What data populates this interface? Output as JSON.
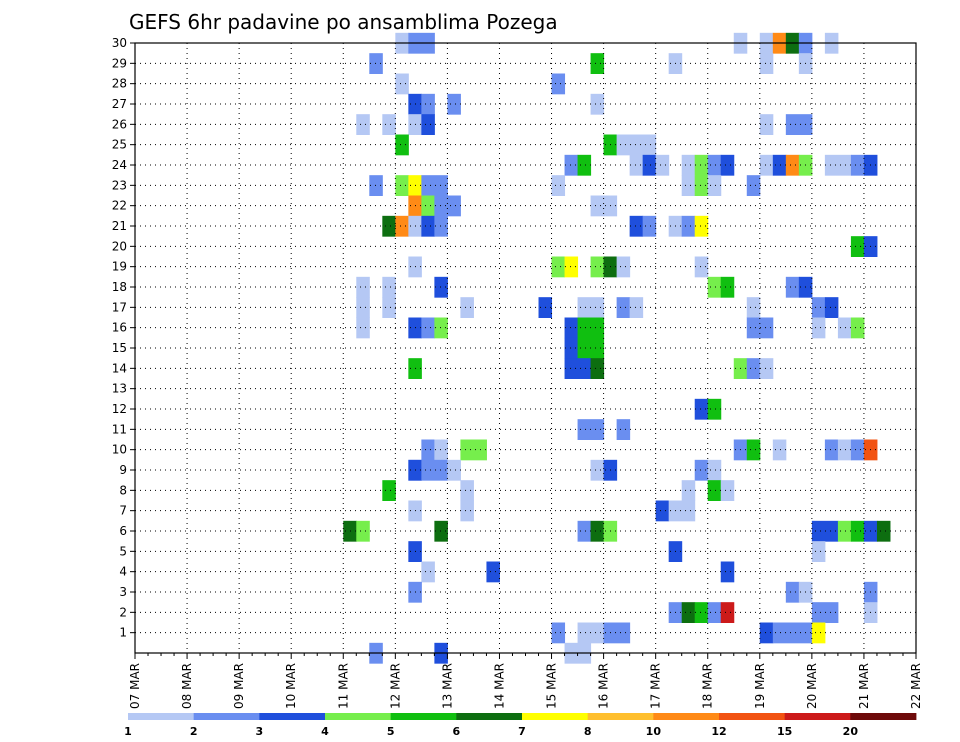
{
  "chart_data": {
    "type": "heatmap",
    "title": "GEFS 6hr padavine po ansamblima Pozega",
    "x_tick_labels": [
      "07 MAR",
      "08 MAR",
      "09 MAR",
      "10 MAR",
      "11 MAR",
      "12 MAR",
      "13 MAR",
      "14 MAR",
      "15 MAR",
      "16 MAR",
      "17 MAR",
      "18 MAR",
      "19 MAR",
      "20 MAR",
      "21 MAR",
      "22 MAR"
    ],
    "x_interval": "6hr",
    "y_tick_labels": [
      "1",
      "2",
      "3",
      "4",
      "5",
      "6",
      "7",
      "8",
      "9",
      "10",
      "11",
      "12",
      "13",
      "14",
      "15",
      "16",
      "17",
      "18",
      "19",
      "20",
      "21",
      "22",
      "23",
      "24",
      "25",
      "26",
      "27",
      "28",
      "29",
      "30"
    ],
    "y_range": [
      0,
      30
    ],
    "grid": true,
    "colorbar": {
      "placement": "bottom",
      "labels": [
        "1",
        "2",
        "3",
        "4",
        "5",
        "6",
        "7",
        "8",
        "10",
        "12",
        "15",
        "20"
      ],
      "colors": [
        "#b5c8f4",
        "#6a8ef0",
        "#1f4fdc",
        "#76ee4c",
        "#10bf10",
        "#0d6e10",
        "#ffff00",
        "#ffbf2e",
        "#ff8a16",
        "#f25312",
        "#cc1a1a",
        "#6e0a0a"
      ]
    },
    "cells": [
      {
        "m": 30,
        "s": [
          [
            20,
            21,
            0
          ],
          [
            21,
            23,
            1
          ],
          [
            46,
            47,
            0
          ],
          [
            48,
            49,
            0
          ],
          [
            49,
            50,
            8
          ],
          [
            50,
            51,
            5
          ],
          [
            51,
            52,
            1
          ],
          [
            53,
            54,
            0
          ]
        ]
      },
      {
        "m": 29,
        "s": [
          [
            18,
            19,
            1
          ],
          [
            35,
            36,
            4
          ],
          [
            41,
            42,
            0
          ],
          [
            48,
            49,
            0
          ],
          [
            51,
            52,
            0
          ]
        ]
      },
      {
        "m": 28,
        "s": [
          [
            20,
            21,
            0
          ],
          [
            32,
            33,
            1
          ]
        ]
      },
      {
        "m": 27,
        "s": [
          [
            21,
            22,
            2
          ],
          [
            22,
            23,
            1
          ],
          [
            24,
            25,
            1
          ],
          [
            35,
            36,
            0
          ]
        ]
      },
      {
        "m": 26,
        "s": [
          [
            17,
            18,
            0
          ],
          [
            19,
            20,
            0
          ],
          [
            21,
            22,
            0
          ],
          [
            22,
            23,
            2
          ],
          [
            48,
            49,
            0
          ],
          [
            50,
            52,
            1
          ]
        ]
      },
      {
        "m": 25,
        "s": [
          [
            20,
            21,
            4
          ],
          [
            36,
            37,
            4
          ],
          [
            37,
            40,
            0
          ]
        ]
      },
      {
        "m": 24,
        "s": [
          [
            33,
            34,
            1
          ],
          [
            34,
            35,
            4
          ],
          [
            38,
            39,
            0
          ],
          [
            39,
            40,
            2
          ],
          [
            40,
            41,
            0
          ],
          [
            42,
            43,
            0
          ],
          [
            43,
            44,
            3
          ],
          [
            44,
            45,
            1
          ],
          [
            45,
            46,
            2
          ],
          [
            48,
            49,
            0
          ],
          [
            49,
            50,
            2
          ],
          [
            50,
            51,
            8
          ],
          [
            51,
            52,
            3
          ],
          [
            53,
            55,
            0
          ],
          [
            55,
            56,
            1
          ],
          [
            56,
            57,
            2
          ]
        ]
      },
      {
        "m": 23,
        "s": [
          [
            18,
            19,
            1
          ],
          [
            20,
            21,
            3
          ],
          [
            21,
            22,
            6
          ],
          [
            22,
            24,
            1
          ],
          [
            32,
            33,
            0
          ],
          [
            42,
            43,
            0
          ],
          [
            43,
            44,
            3
          ],
          [
            44,
            45,
            0
          ],
          [
            47,
            48,
            1
          ]
        ]
      },
      {
        "m": 22,
        "s": [
          [
            21,
            22,
            8
          ],
          [
            22,
            23,
            3
          ],
          [
            23,
            25,
            1
          ],
          [
            35,
            37,
            0
          ]
        ]
      },
      {
        "m": 21,
        "s": [
          [
            19,
            20,
            5
          ],
          [
            20,
            21,
            8
          ],
          [
            21,
            22,
            0
          ],
          [
            22,
            23,
            2
          ],
          [
            23,
            24,
            1
          ],
          [
            38,
            39,
            2
          ],
          [
            39,
            40,
            1
          ],
          [
            41,
            42,
            0
          ],
          [
            42,
            43,
            1
          ],
          [
            43,
            44,
            6
          ]
        ]
      },
      {
        "m": 20,
        "s": [
          [
            55,
            56,
            4
          ],
          [
            56,
            57,
            2
          ]
        ]
      },
      {
        "m": 19,
        "s": [
          [
            21,
            22,
            0
          ],
          [
            32,
            33,
            3
          ],
          [
            33,
            34,
            6
          ],
          [
            35,
            36,
            3
          ],
          [
            36,
            37,
            5
          ],
          [
            37,
            38,
            0
          ],
          [
            43,
            44,
            0
          ]
        ]
      },
      {
        "m": 18,
        "s": [
          [
            17,
            18,
            0
          ],
          [
            19,
            20,
            0
          ],
          [
            23,
            24,
            2
          ],
          [
            44,
            45,
            3
          ],
          [
            45,
            46,
            4
          ],
          [
            50,
            51,
            1
          ],
          [
            51,
            52,
            2
          ]
        ]
      },
      {
        "m": 17,
        "s": [
          [
            17,
            18,
            0
          ],
          [
            19,
            20,
            0
          ],
          [
            25,
            26,
            0
          ],
          [
            31,
            32,
            2
          ],
          [
            34,
            36,
            0
          ],
          [
            37,
            38,
            1
          ],
          [
            38,
            39,
            0
          ],
          [
            47,
            48,
            0
          ],
          [
            52,
            53,
            1
          ],
          [
            53,
            54,
            2
          ]
        ]
      },
      {
        "m": 16,
        "s": [
          [
            17,
            18,
            0
          ],
          [
            21,
            22,
            2
          ],
          [
            22,
            23,
            1
          ],
          [
            23,
            24,
            3
          ],
          [
            33,
            34,
            2
          ],
          [
            34,
            36,
            4
          ],
          [
            47,
            49,
            1
          ],
          [
            52,
            53,
            0
          ],
          [
            54,
            55,
            0
          ],
          [
            55,
            56,
            3
          ]
        ]
      },
      {
        "m": 15,
        "s": [
          [
            33,
            34,
            2
          ],
          [
            34,
            36,
            4
          ]
        ]
      },
      {
        "m": 14,
        "s": [
          [
            21,
            22,
            4
          ],
          [
            33,
            35,
            2
          ],
          [
            35,
            36,
            5
          ],
          [
            46,
            47,
            3
          ],
          [
            47,
            48,
            1
          ],
          [
            48,
            49,
            0
          ]
        ]
      },
      {
        "m": 12,
        "s": [
          [
            43,
            44,
            2
          ],
          [
            44,
            45,
            4
          ]
        ]
      },
      {
        "m": 11,
        "s": [
          [
            34,
            36,
            1
          ],
          [
            37,
            38,
            1
          ]
        ]
      },
      {
        "m": 10,
        "s": [
          [
            22,
            23,
            1
          ],
          [
            23,
            24,
            0
          ],
          [
            25,
            27,
            3
          ],
          [
            46,
            47,
            1
          ],
          [
            47,
            48,
            4
          ],
          [
            49,
            50,
            0
          ],
          [
            53,
            54,
            1
          ],
          [
            54,
            55,
            0
          ],
          [
            55,
            56,
            1
          ],
          [
            56,
            57,
            9
          ]
        ]
      },
      {
        "m": 9,
        "s": [
          [
            21,
            22,
            0
          ],
          [
            21,
            22,
            2
          ],
          [
            22,
            24,
            1
          ],
          [
            24,
            25,
            0
          ],
          [
            35,
            36,
            0
          ],
          [
            36,
            37,
            2
          ],
          [
            43,
            44,
            1
          ],
          [
            44,
            45,
            0
          ]
        ]
      },
      {
        "m": 8,
        "s": [
          [
            19,
            20,
            4
          ],
          [
            25,
            26,
            0
          ],
          [
            42,
            43,
            0
          ],
          [
            44,
            45,
            4
          ],
          [
            45,
            46,
            0
          ]
        ]
      },
      {
        "m": 7,
        "s": [
          [
            21,
            22,
            0
          ],
          [
            25,
            26,
            0
          ],
          [
            40,
            41,
            2
          ],
          [
            41,
            43,
            0
          ]
        ]
      },
      {
        "m": 6,
        "s": [
          [
            16,
            17,
            5
          ],
          [
            17,
            18,
            3
          ],
          [
            23,
            24,
            5
          ],
          [
            34,
            35,
            1
          ],
          [
            35,
            36,
            5
          ],
          [
            36,
            37,
            3
          ],
          [
            52,
            54,
            2
          ],
          [
            54,
            55,
            3
          ],
          [
            55,
            56,
            4
          ],
          [
            56,
            57,
            2
          ],
          [
            57,
            58,
            5
          ]
        ]
      },
      {
        "m": 5,
        "s": [
          [
            21,
            22,
            2
          ],
          [
            41,
            42,
            2
          ],
          [
            52,
            53,
            0
          ]
        ]
      },
      {
        "m": 4,
        "s": [
          [
            22,
            23,
            0
          ],
          [
            27,
            28,
            2
          ],
          [
            45,
            46,
            2
          ]
        ]
      },
      {
        "m": 3,
        "s": [
          [
            21,
            22,
            1
          ],
          [
            50,
            51,
            1
          ],
          [
            51,
            52,
            0
          ],
          [
            56,
            57,
            1
          ]
        ]
      },
      {
        "m": 2,
        "s": [
          [
            41,
            42,
            1
          ],
          [
            42,
            43,
            5
          ],
          [
            43,
            44,
            4
          ],
          [
            44,
            45,
            1
          ],
          [
            45,
            46,
            10
          ],
          [
            52,
            54,
            1
          ],
          [
            56,
            57,
            0
          ]
        ]
      },
      {
        "m": 1,
        "s": [
          [
            32,
            33,
            1
          ],
          [
            34,
            36,
            0
          ],
          [
            36,
            38,
            1
          ],
          [
            48,
            49,
            2
          ],
          [
            49,
            52,
            1
          ],
          [
            52,
            53,
            6
          ]
        ]
      },
      {
        "m": 0,
        "s": [
          [
            18,
            19,
            1
          ],
          [
            23,
            24,
            2
          ],
          [
            33,
            35,
            0
          ]
        ]
      }
    ]
  }
}
